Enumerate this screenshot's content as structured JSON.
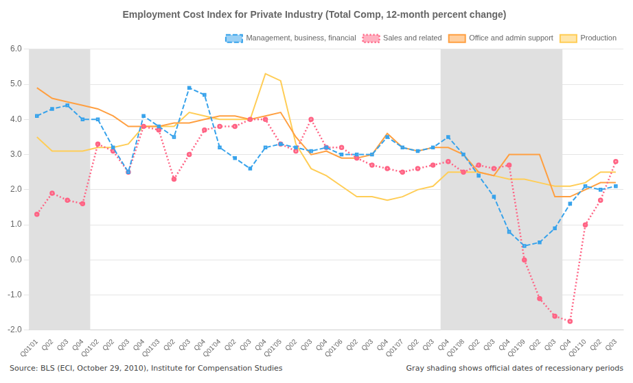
{
  "chart_data": {
    "type": "line",
    "title": "Employment Cost Index for Private Industry (Total Comp, 12-month percent change)",
    "annotations": [
      "Source: BLS (ECI, October 29, 2010), Institute for Compensation Studies",
      "Gray shading shows official dates of recessionary periods"
    ],
    "categories": [
      "Q01'01",
      "Q02",
      "Q03",
      "Q04",
      "Q01'02",
      "Q02",
      "Q03",
      "Q04",
      "Q01'03",
      "Q02",
      "Q03",
      "Q04",
      "Q01'04",
      "Q02",
      "Q03",
      "Q04",
      "Q01'05",
      "Q02",
      "Q03",
      "Q04",
      "Q01'06",
      "Q02",
      "Q03",
      "Q04",
      "Q01'07",
      "Q02",
      "Q03",
      "Q04",
      "Q01'08",
      "Q02",
      "Q03",
      "Q04",
      "Q01'09",
      "Q02",
      "Q03",
      "Q04",
      "Q01'10",
      "Q02",
      "Q03"
    ],
    "series": [
      {
        "name": "Management, business, financial",
        "marker": "square",
        "line_style": "dashed",
        "values": [
          4.1,
          4.3,
          4.4,
          4.0,
          4.0,
          3.2,
          2.5,
          4.1,
          3.8,
          3.5,
          4.9,
          4.7,
          3.2,
          2.9,
          2.6,
          3.2,
          3.3,
          3.2,
          3.1,
          3.2,
          3.0,
          3.0,
          3.0,
          3.5,
          3.2,
          3.1,
          3.2,
          3.5,
          3.0,
          2.4,
          1.8,
          0.8,
          0.4,
          0.5,
          0.9,
          1.6,
          2.1,
          2.0,
          2.1
        ]
      },
      {
        "name": "Sales and related",
        "marker": "circle",
        "line_style": "dotted",
        "values": [
          1.3,
          1.9,
          1.7,
          1.6,
          3.3,
          3.1,
          2.5,
          3.8,
          3.7,
          2.3,
          3.0,
          3.7,
          3.8,
          3.8,
          4.0,
          4.0,
          3.3,
          3.1,
          4.0,
          3.2,
          3.2,
          2.9,
          2.7,
          2.6,
          2.5,
          2.6,
          2.7,
          2.8,
          2.5,
          2.7,
          2.6,
          2.7,
          0.0,
          -1.1,
          -1.6,
          -1.75,
          1.0,
          1.7,
          2.8
        ]
      },
      {
        "name": "Office and admin support",
        "marker": "none",
        "line_style": "solid",
        "values": [
          4.9,
          4.6,
          4.5,
          4.4,
          4.3,
          4.1,
          3.8,
          3.8,
          3.8,
          3.9,
          3.9,
          4.0,
          4.1,
          4.1,
          4.0,
          4.1,
          4.2,
          3.5,
          3.0,
          3.1,
          2.9,
          2.9,
          3.0,
          3.6,
          3.2,
          3.1,
          3.2,
          3.2,
          3.0,
          2.5,
          2.4,
          3.0,
          3.0,
          3.0,
          1.8,
          1.8,
          2.0,
          2.2,
          2.2
        ]
      },
      {
        "name": "Production",
        "marker": "none",
        "line_style": "solid",
        "values": [
          3.5,
          3.1,
          3.1,
          3.1,
          3.2,
          3.2,
          3.3,
          3.8,
          3.8,
          3.8,
          4.2,
          4.1,
          4.0,
          4.0,
          4.0,
          5.3,
          5.1,
          3.3,
          2.6,
          2.4,
          2.1,
          1.8,
          1.8,
          1.7,
          1.8,
          2.0,
          2.1,
          2.5,
          2.5,
          2.5,
          2.4,
          2.3,
          2.3,
          2.2,
          2.1,
          2.1,
          2.2,
          2.5,
          2.5
        ]
      }
    ],
    "ylim": [
      -2,
      6
    ],
    "yticks": [
      {
        "value": -2,
        "label": "-2.0"
      },
      {
        "value": -1,
        "label": "-1.0"
      },
      {
        "value": 0,
        "label": "0.0"
      },
      {
        "value": 1,
        "label": "1.0"
      },
      {
        "value": 2,
        "label": "2.0"
      },
      {
        "value": 3,
        "label": "3.0"
      },
      {
        "value": 4,
        "label": "4.0"
      },
      {
        "value": 5,
        "label": "5.0"
      },
      {
        "value": 6,
        "label": "6.0"
      }
    ],
    "grid": "y",
    "legend": "top",
    "recession_bands": {
      "color": "#E0E0E0",
      "ranges": [
        [
          0,
          3
        ],
        [
          27,
          34
        ]
      ]
    }
  }
}
